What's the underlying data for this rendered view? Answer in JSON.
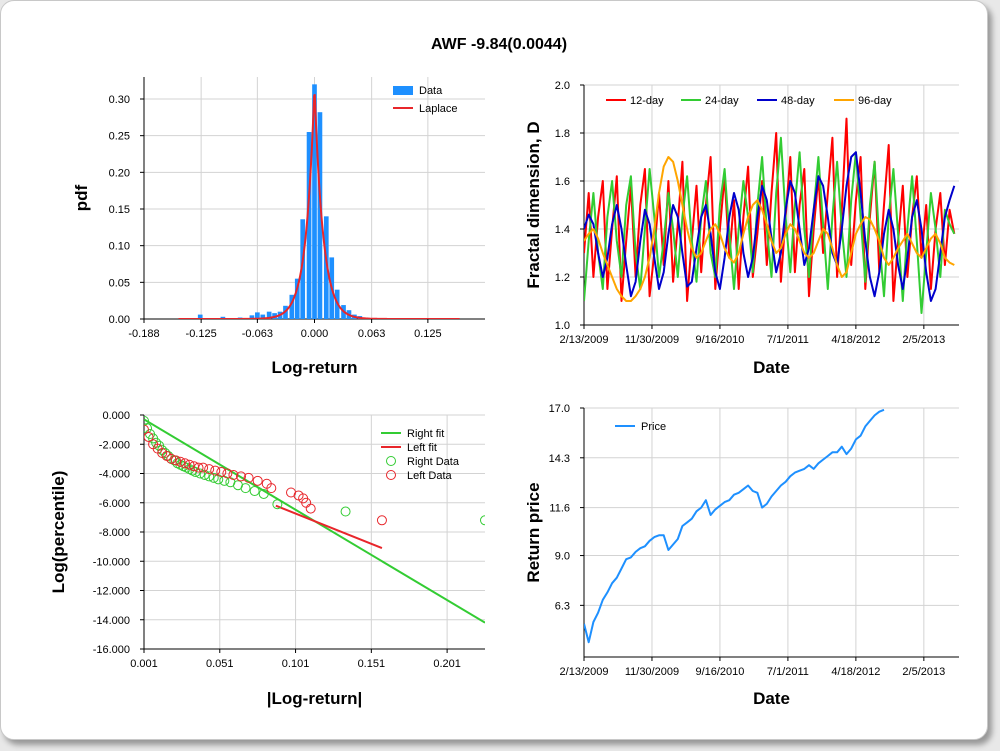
{
  "title": "AWF -9.84(0.0044)",
  "colors": {
    "data_bar": "#1e90ff",
    "laplace": "#e8262b",
    "d12": "#ff0000",
    "d24": "#33cc33",
    "d48": "#0000cc",
    "d96": "#ffa500",
    "right": "#33cc33",
    "left": "#e8262b",
    "price": "#1e90ff",
    "grid": "#d3d3d3"
  },
  "chart_data": [
    {
      "id": "pdf",
      "type": "bar",
      "title": "",
      "xlabel": "Log-return",
      "ylabel": "pdf",
      "xlim": [
        -0.188,
        0.188
      ],
      "ylim": [
        0,
        0.33
      ],
      "xticks": [
        "-0.188",
        "-0.125",
        "-0.063",
        "0.000",
        "0.063",
        "0.125"
      ],
      "xtick_values": [
        -0.188,
        -0.125,
        -0.063,
        0.0,
        0.063,
        0.125
      ],
      "yticks": [
        "0.00",
        "0.05",
        "0.10",
        "0.15",
        "0.20",
        "0.25",
        "0.30"
      ],
      "ytick_values": [
        0,
        0.05,
        0.1,
        0.15,
        0.2,
        0.25,
        0.3
      ],
      "legend": {
        "position": "top-right",
        "entries": [
          "Data",
          "Laplace"
        ]
      },
      "series": [
        {
          "name": "Data",
          "type": "bar",
          "bin_width": 0.0063,
          "x": [
            -0.126,
            -0.101,
            -0.082,
            -0.069,
            -0.063,
            -0.057,
            -0.05,
            -0.044,
            -0.038,
            -0.032,
            -0.025,
            -0.019,
            -0.013,
            -0.006,
            0.0,
            0.006,
            0.013,
            0.019,
            0.025,
            0.032,
            0.038,
            0.044,
            0.05,
            0.057
          ],
          "y": [
            0.006,
            0.003,
            0.002,
            0.005,
            0.009,
            0.006,
            0.01,
            0.008,
            0.01,
            0.018,
            0.033,
            0.055,
            0.136,
            0.255,
            0.32,
            0.282,
            0.14,
            0.084,
            0.04,
            0.019,
            0.012,
            0.006,
            0.004,
            0.002
          ]
        },
        {
          "name": "Laplace",
          "type": "line",
          "function": "laplace",
          "mu": 0.0,
          "b": 0.0094,
          "scale": 0.318,
          "xrange": [
            -0.15,
            0.16
          ]
        }
      ]
    },
    {
      "id": "fractal",
      "type": "line",
      "title": "",
      "xlabel": "Date",
      "ylabel": "Fractal dimension, D",
      "xlim": [
        0,
        1600
      ],
      "ylim": [
        1.0,
        2.0
      ],
      "xticks": [
        "2/13/2009",
        "11/30/2009",
        "9/16/2010",
        "7/1/2011",
        "4/18/2012",
        "2/5/2013"
      ],
      "xtick_values": [
        0,
        290,
        580,
        870,
        1160,
        1450
      ],
      "yticks": [
        "1.0",
        "1.2",
        "1.4",
        "1.6",
        "1.8",
        "2.0"
      ],
      "ytick_values": [
        1.0,
        1.2,
        1.4,
        1.6,
        1.8,
        2.0
      ],
      "legend": {
        "position": "top",
        "entries": [
          "12-day",
          "24-day",
          "48-day",
          "96-day"
        ]
      },
      "series": [
        {
          "name": "12-day",
          "x_step": 20,
          "y": [
            1.3,
            1.55,
            1.2,
            1.45,
            1.6,
            1.15,
            1.4,
            1.62,
            1.1,
            1.35,
            1.58,
            1.2,
            1.5,
            1.65,
            1.12,
            1.3,
            1.55,
            1.25,
            1.6,
            1.18,
            1.42,
            1.68,
            1.1,
            1.35,
            1.58,
            1.22,
            1.5,
            1.7,
            1.15,
            1.4,
            1.62,
            1.28,
            1.52,
            1.15,
            1.45,
            1.66,
            1.2,
            1.38,
            1.6,
            1.25,
            1.55,
            1.8,
            1.18,
            1.45,
            1.7,
            1.22,
            1.5,
            1.65,
            1.12,
            1.4,
            1.62,
            1.3,
            1.55,
            1.78,
            1.2,
            1.48,
            1.86,
            1.25,
            1.52,
            1.7,
            1.15,
            1.45,
            1.68,
            1.22,
            1.5,
            1.75,
            1.1,
            1.35,
            1.58,
            1.2,
            1.45,
            1.62,
            1.28,
            1.5,
            1.15,
            1.4,
            1.55,
            1.25,
            1.48,
            1.38
          ]
        },
        {
          "name": "24-day",
          "x_step": 20,
          "y": [
            1.1,
            1.35,
            1.55,
            1.3,
            1.15,
            1.45,
            1.6,
            1.35,
            1.2,
            1.5,
            1.62,
            1.3,
            1.15,
            1.4,
            1.65,
            1.45,
            1.2,
            1.35,
            1.55,
            1.4,
            1.2,
            1.45,
            1.62,
            1.35,
            1.18,
            1.45,
            1.6,
            1.3,
            1.2,
            1.5,
            1.65,
            1.38,
            1.15,
            1.4,
            1.6,
            1.45,
            1.22,
            1.5,
            1.7,
            1.4,
            1.2,
            1.55,
            1.78,
            1.45,
            1.22,
            1.5,
            1.72,
            1.4,
            1.2,
            1.48,
            1.7,
            1.42,
            1.15,
            1.45,
            1.68,
            1.4,
            1.2,
            1.52,
            1.72,
            1.45,
            1.18,
            1.5,
            1.68,
            1.35,
            1.12,
            1.45,
            1.65,
            1.38,
            1.1,
            1.4,
            1.62,
            1.35,
            1.05,
            1.3,
            1.55,
            1.4,
            1.2,
            1.48,
            1.42,
            1.38
          ]
        },
        {
          "name": "48-day",
          "x_step": 20,
          "y": [
            1.4,
            1.46,
            1.42,
            1.3,
            1.2,
            1.28,
            1.42,
            1.5,
            1.4,
            1.25,
            1.12,
            1.18,
            1.35,
            1.48,
            1.42,
            1.28,
            1.15,
            1.22,
            1.38,
            1.5,
            1.45,
            1.3,
            1.16,
            1.18,
            1.32,
            1.45,
            1.5,
            1.38,
            1.22,
            1.15,
            1.28,
            1.45,
            1.55,
            1.48,
            1.3,
            1.2,
            1.28,
            1.45,
            1.58,
            1.52,
            1.36,
            1.22,
            1.3,
            1.48,
            1.6,
            1.55,
            1.4,
            1.25,
            1.32,
            1.48,
            1.62,
            1.58,
            1.45,
            1.3,
            1.25,
            1.4,
            1.58,
            1.7,
            1.72,
            1.55,
            1.35,
            1.2,
            1.12,
            1.22,
            1.38,
            1.48,
            1.4,
            1.25,
            1.15,
            1.28,
            1.45,
            1.52,
            1.4,
            1.22,
            1.1,
            1.15,
            1.3,
            1.45,
            1.52,
            1.58
          ]
        },
        {
          "name": "96-day",
          "x_step": 20,
          "y": [
            1.35,
            1.38,
            1.4,
            1.36,
            1.3,
            1.25,
            1.2,
            1.15,
            1.12,
            1.1,
            1.1,
            1.12,
            1.15,
            1.2,
            1.28,
            1.4,
            1.55,
            1.66,
            1.7,
            1.68,
            1.6,
            1.5,
            1.4,
            1.32,
            1.28,
            1.3,
            1.35,
            1.4,
            1.42,
            1.38,
            1.32,
            1.28,
            1.26,
            1.3,
            1.38,
            1.45,
            1.5,
            1.52,
            1.48,
            1.42,
            1.35,
            1.3,
            1.32,
            1.38,
            1.42,
            1.4,
            1.35,
            1.3,
            1.28,
            1.3,
            1.35,
            1.4,
            1.38,
            1.32,
            1.25,
            1.2,
            1.22,
            1.3,
            1.38,
            1.42,
            1.45,
            1.44,
            1.4,
            1.35,
            1.28,
            1.25,
            1.28,
            1.32,
            1.35,
            1.38,
            1.34,
            1.3,
            1.28,
            1.32,
            1.36,
            1.38,
            1.34,
            1.28,
            1.26,
            1.25
          ]
        }
      ]
    },
    {
      "id": "tail",
      "type": "scatter",
      "title": "",
      "xlabel": "|Log-return|",
      "ylabel": "Log(percentile)",
      "xlim": [
        0.001,
        0.226
      ],
      "ylim": [
        -16,
        0
      ],
      "xticks": [
        "0.001",
        "0.051",
        "0.101",
        "0.151",
        "0.201"
      ],
      "xtick_values": [
        0.001,
        0.051,
        0.101,
        0.151,
        0.201
      ],
      "yticks": [
        "-16.000",
        "-14.000",
        "-12.000",
        "-10.000",
        "-8.000",
        "-6.000",
        "-4.000",
        "-2.000",
        "0.000"
      ],
      "ytick_values": [
        -16,
        -14,
        -12,
        -10,
        -8,
        -6,
        -4,
        -2,
        0
      ],
      "legend": {
        "position": "top-right",
        "entries": [
          "Right fit",
          "Left fit",
          "Right Data",
          "Left Data"
        ]
      },
      "series": [
        {
          "name": "Right fit",
          "type": "line",
          "x": [
            0.001,
            0.226
          ],
          "y": [
            -0.3,
            -14.2
          ]
        },
        {
          "name": "Left fit",
          "type": "line",
          "x": [
            0.088,
            0.158
          ],
          "y": [
            -6.2,
            -9.1
          ]
        },
        {
          "name": "Right Data",
          "type": "scatter",
          "x": [
            0.001,
            0.003,
            0.005,
            0.007,
            0.009,
            0.011,
            0.013,
            0.015,
            0.017,
            0.019,
            0.021,
            0.023,
            0.025,
            0.027,
            0.029,
            0.031,
            0.033,
            0.035,
            0.038,
            0.041,
            0.044,
            0.047,
            0.05,
            0.054,
            0.058,
            0.063,
            0.068,
            0.074,
            0.08,
            0.089,
            0.134,
            0.226
          ],
          "y": [
            -0.4,
            -0.9,
            -1.3,
            -1.6,
            -1.9,
            -2.1,
            -2.4,
            -2.6,
            -2.8,
            -3.0,
            -3.1,
            -3.3,
            -3.4,
            -3.5,
            -3.6,
            -3.7,
            -3.8,
            -3.9,
            -4.0,
            -4.1,
            -4.2,
            -4.3,
            -4.4,
            -4.5,
            -4.6,
            -4.8,
            -5.0,
            -5.2,
            -5.4,
            -6.1,
            -6.6,
            -7.2
          ]
        },
        {
          "name": "Left Data",
          "type": "scatter",
          "x": [
            0.001,
            0.004,
            0.007,
            0.01,
            0.013,
            0.016,
            0.019,
            0.022,
            0.025,
            0.028,
            0.031,
            0.034,
            0.037,
            0.04,
            0.044,
            0.048,
            0.052,
            0.056,
            0.06,
            0.065,
            0.07,
            0.076,
            0.082,
            0.085,
            0.098,
            0.103,
            0.106,
            0.108,
            0.111,
            0.158
          ],
          "y": [
            -1.0,
            -1.5,
            -2.0,
            -2.3,
            -2.6,
            -2.8,
            -3.0,
            -3.1,
            -3.2,
            -3.3,
            -3.4,
            -3.5,
            -3.6,
            -3.6,
            -3.7,
            -3.8,
            -3.9,
            -4.0,
            -4.1,
            -4.2,
            -4.3,
            -4.5,
            -4.7,
            -5.0,
            -5.3,
            -5.5,
            -5.7,
            -6.0,
            -6.4,
            -7.2
          ]
        }
      ]
    },
    {
      "id": "price",
      "type": "line",
      "title": "",
      "xlabel": "Date",
      "ylabel": "Return price",
      "xlim": [
        0,
        1600
      ],
      "ylim": [
        3.5,
        17.0
      ],
      "xticks": [
        "2/13/2009",
        "11/30/2009",
        "9/16/2010",
        "7/1/2011",
        "4/18/2012",
        "2/5/2013"
      ],
      "xtick_values": [
        0,
        290,
        580,
        870,
        1160,
        1450
      ],
      "yticks": [
        "6.3",
        "9.0",
        "11.6",
        "14.3",
        "17.0"
      ],
      "ytick_values": [
        6.3,
        9.0,
        11.6,
        14.3,
        17.0
      ],
      "legend": {
        "position": "top-left",
        "entries": [
          "Price"
        ]
      },
      "series": [
        {
          "name": "Price",
          "x_step": 20,
          "y": [
            5.3,
            4.3,
            5.4,
            5.9,
            6.6,
            7.0,
            7.5,
            7.8,
            8.3,
            8.8,
            8.9,
            9.2,
            9.4,
            9.5,
            9.8,
            10.0,
            10.1,
            10.1,
            9.3,
            9.6,
            9.9,
            10.6,
            10.8,
            11.0,
            11.4,
            11.6,
            12.0,
            11.2,
            11.5,
            11.7,
            11.9,
            12.0,
            12.3,
            12.4,
            12.6,
            12.8,
            12.5,
            12.4,
            11.6,
            11.8,
            12.2,
            12.5,
            12.8,
            13.0,
            13.3,
            13.5,
            13.6,
            13.7,
            13.9,
            13.7,
            14.0,
            14.2,
            14.4,
            14.6,
            14.6,
            14.9,
            14.5,
            14.8,
            15.3,
            15.5,
            16.0,
            16.3,
            16.6,
            16.8,
            16.9
          ]
        }
      ]
    }
  ]
}
